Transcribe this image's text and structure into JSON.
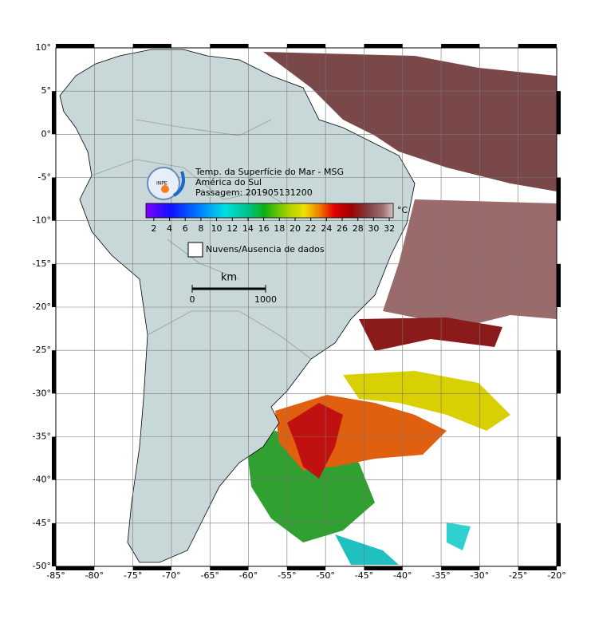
{
  "title_lines": [
    "Temp. da Superfície do Mar - MSG",
    "América do Sul",
    "Passagem: 201905131200"
  ],
  "logo": "INPE",
  "colorbar": {
    "range": [
      1,
      32.5
    ],
    "ticks": [
      2,
      4,
      6,
      8,
      10,
      12,
      14,
      16,
      18,
      20,
      22,
      24,
      26,
      28,
      30,
      32
    ],
    "unit": "°C"
  },
  "legend": {
    "label": "Nuvens/Ausencia de dados"
  },
  "scale_bar": {
    "unit": "km",
    "labels": [
      0,
      1000
    ]
  },
  "map": {
    "xlim": [
      -85,
      -20
    ],
    "ylim": [
      -50,
      10
    ],
    "xticks": [
      {
        "value": -85,
        "label": "-85°"
      },
      {
        "value": -80,
        "label": "-80°"
      },
      {
        "value": -75,
        "label": "-75°"
      },
      {
        "value": -70,
        "label": "-70°"
      },
      {
        "value": -65,
        "label": "-65°"
      },
      {
        "value": -60,
        "label": "-60°"
      },
      {
        "value": -55,
        "label": "-55°"
      },
      {
        "value": -50,
        "label": "-50°"
      },
      {
        "value": -45,
        "label": "-45°"
      },
      {
        "value": -40,
        "label": "-40°"
      },
      {
        "value": -35,
        "label": "-35°"
      },
      {
        "value": -30,
        "label": "-30°"
      },
      {
        "value": -25,
        "label": "-25°"
      },
      {
        "value": -20,
        "label": "-20°"
      }
    ],
    "yticks": [
      {
        "value": 10,
        "label": "10°"
      },
      {
        "value": 5,
        "label": "5°"
      },
      {
        "value": 0,
        "label": "0°"
      },
      {
        "value": -5,
        "label": "-5°"
      },
      {
        "value": -10,
        "label": "-10°"
      },
      {
        "value": -15,
        "label": "-15°"
      },
      {
        "value": -20,
        "label": "-20°"
      },
      {
        "value": -25,
        "label": "-25°"
      },
      {
        "value": -30,
        "label": "-30°"
      },
      {
        "value": -35,
        "label": "-35°"
      },
      {
        "value": -40,
        "label": "-40°"
      },
      {
        "value": -45,
        "label": "-45°"
      },
      {
        "value": -50,
        "label": "-50°"
      }
    ]
  }
}
